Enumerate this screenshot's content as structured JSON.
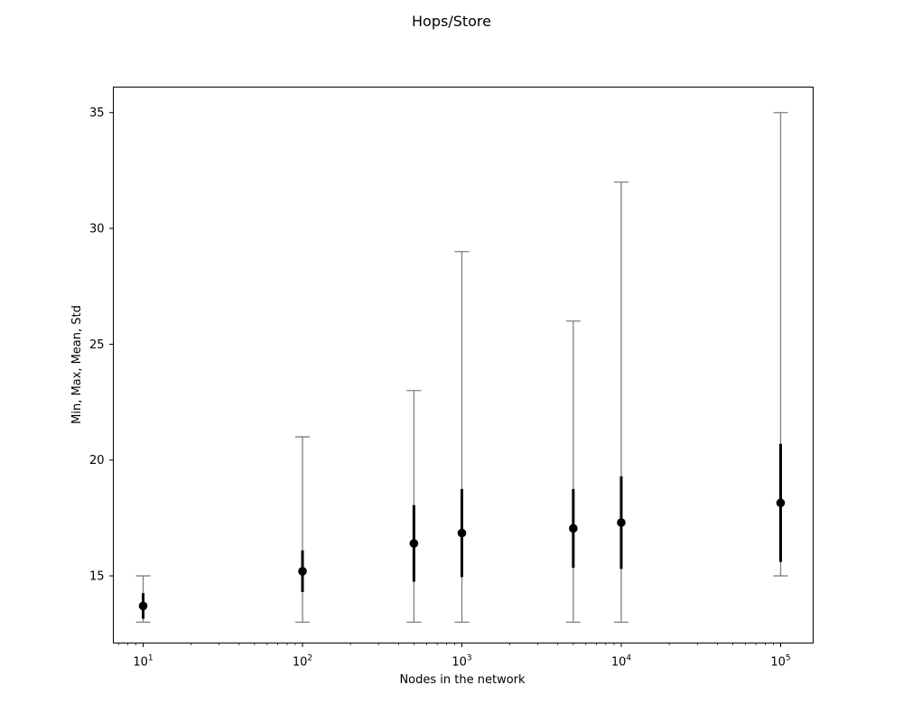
{
  "chart_data": {
    "type": "errorbar",
    "title": "Hops/Store",
    "xlabel": "Nodes in the network",
    "ylabel": "Min, Max, Mean, Std",
    "xscale": "log",
    "xlim": [
      6.5,
      160000
    ],
    "ylim": [
      12.1,
      36.1
    ],
    "grid": false,
    "x_ticks": [
      {
        "base": "10",
        "exp": "1",
        "value": 10
      },
      {
        "base": "10",
        "exp": "2",
        "value": 100
      },
      {
        "base": "10",
        "exp": "3",
        "value": 1000
      },
      {
        "base": "10",
        "exp": "4",
        "value": 10000
      },
      {
        "base": "10",
        "exp": "5",
        "value": 100000
      }
    ],
    "y_ticks": [
      15,
      20,
      25,
      30,
      35
    ],
    "series": [
      {
        "points": [
          {
            "x": 10,
            "min": 13,
            "max": 15,
            "mean": 13.7,
            "std": 0.55
          },
          {
            "x": 100,
            "min": 13,
            "max": 21,
            "mean": 15.2,
            "std": 0.9
          },
          {
            "x": 500,
            "min": 13,
            "max": 23,
            "mean": 16.4,
            "std": 1.65
          },
          {
            "x": 1000,
            "min": 13,
            "max": 29,
            "mean": 16.85,
            "std": 1.9
          },
          {
            "x": 5000,
            "min": 13,
            "max": 26,
            "mean": 17.05,
            "std": 1.7
          },
          {
            "x": 10000,
            "min": 13,
            "max": 32,
            "mean": 17.3,
            "std": 2.0
          },
          {
            "x": 100000,
            "min": 15,
            "max": 35,
            "mean": 18.15,
            "std": 2.55
          }
        ]
      }
    ],
    "colors": {
      "range": "#808080",
      "std": "#000000",
      "mean": "#000000",
      "axes": "#000000"
    }
  }
}
